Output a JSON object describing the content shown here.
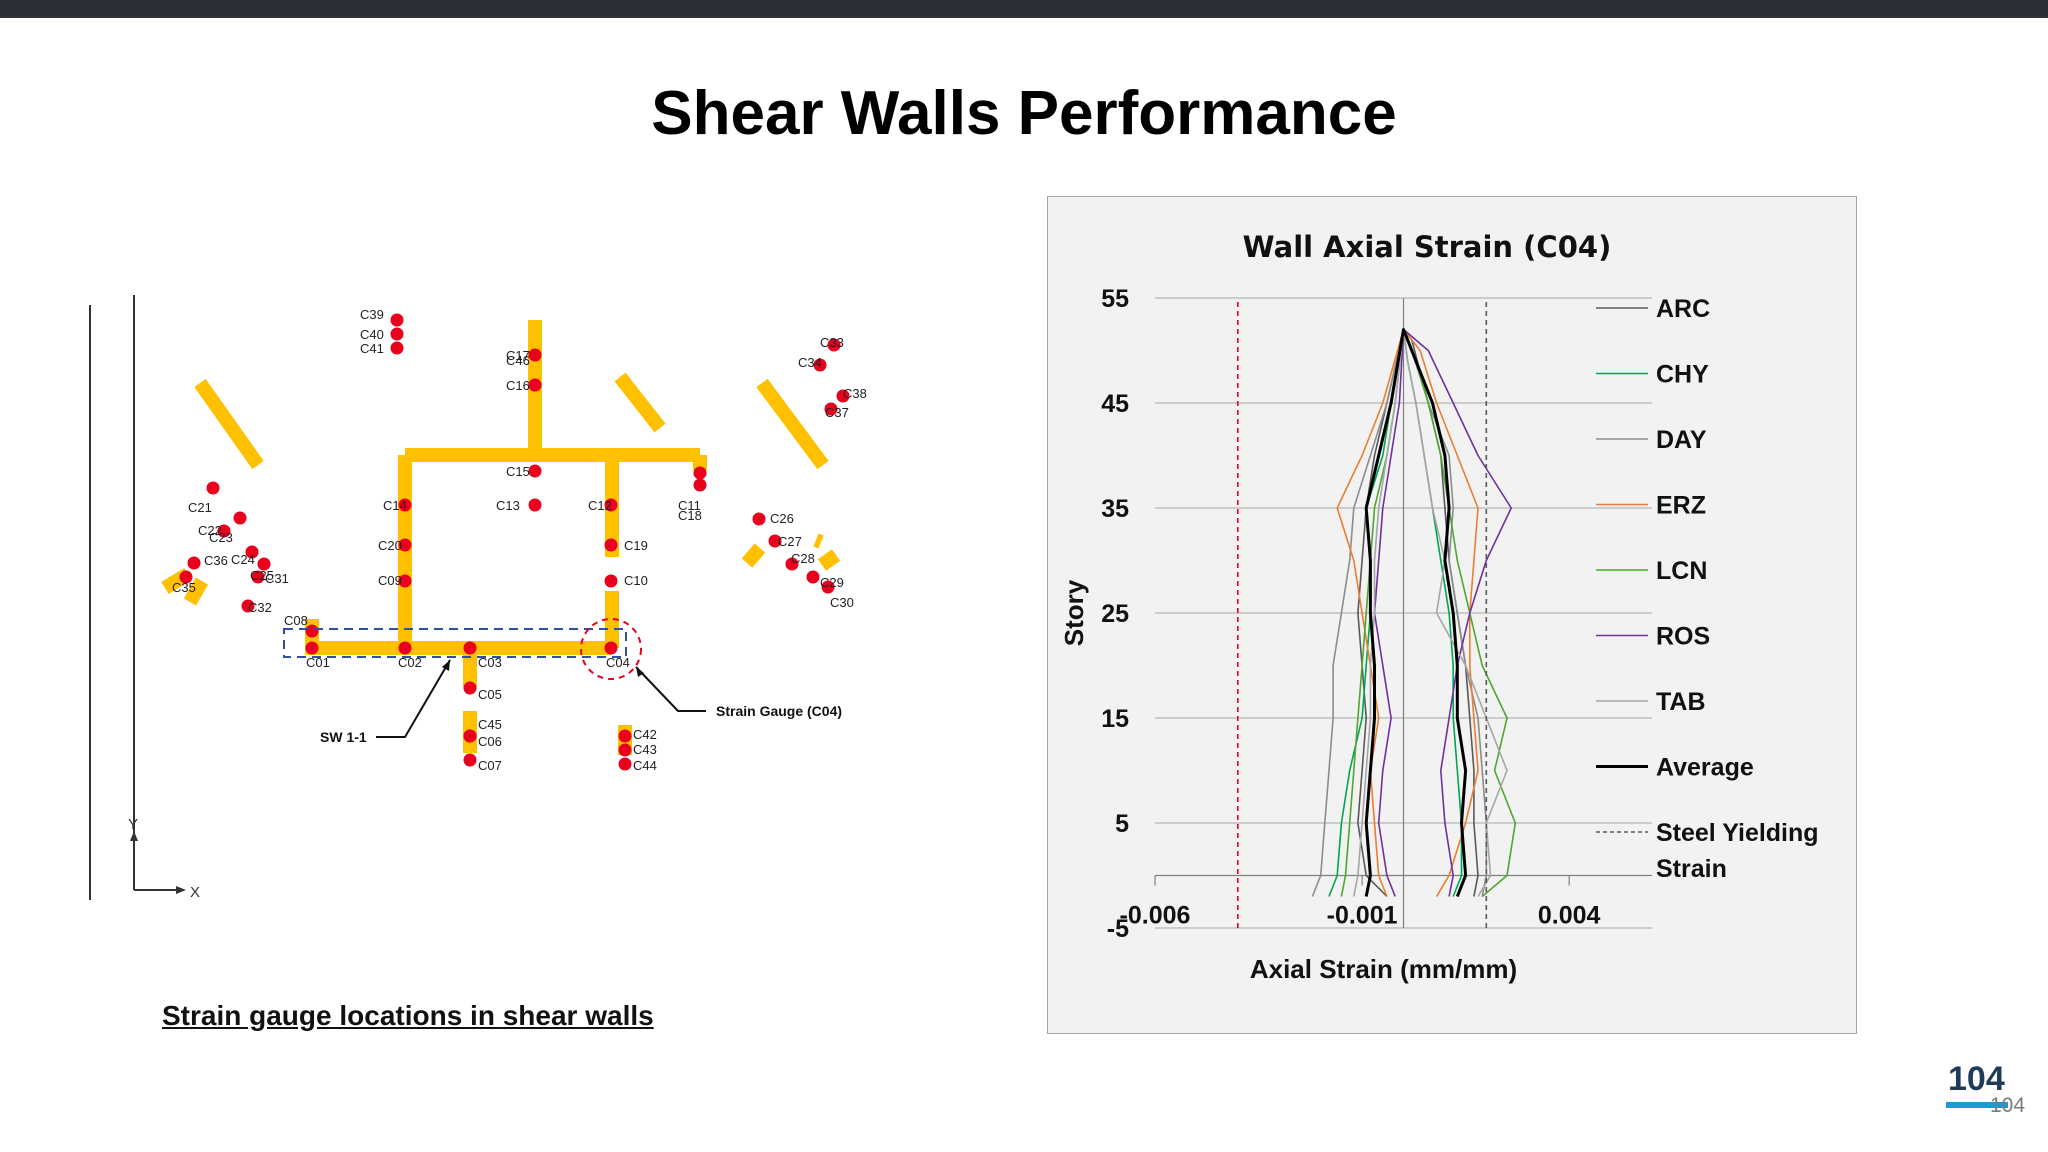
{
  "slide": {
    "title": "Shear Walls Performance",
    "caption": "Strain gauge locations in shear walls",
    "page_number": "104",
    "page_number_secondary": "104"
  },
  "plan": {
    "gauges": [
      "C01",
      "C02",
      "C03",
      "C04",
      "C05",
      "C06",
      "C07",
      "C08",
      "C09",
      "C10",
      "C11",
      "C12",
      "C13",
      "C14",
      "C15",
      "C16",
      "C17",
      "C18",
      "C19",
      "C20",
      "C21",
      "C22",
      "C23",
      "C24",
      "C25",
      "C26",
      "C27",
      "C28",
      "C29",
      "C30",
      "C31",
      "C32",
      "C33",
      "C34",
      "C35",
      "C36",
      "C37",
      "C38",
      "C39",
      "C40",
      "C41",
      "C42",
      "C43",
      "C44",
      "C45",
      "C46"
    ],
    "sw_label": "SW 1-1",
    "callout_label": "Strain Gauge (C04)",
    "axis_y": "Y",
    "axis_x": "X",
    "colors": {
      "wall": "#ffc000",
      "gauge": "#e8001c",
      "dashed_box": "#2e4fa3",
      "highlight": "#e8001c"
    }
  },
  "chart_data": {
    "type": "line",
    "title": "Wall Axial Strain (C04)",
    "xlabel": "Axial Strain (mm/mm)",
    "ylabel": "Story",
    "xlim": [
      -0.006,
      0.006
    ],
    "ylim": [
      -5,
      55
    ],
    "x_ticks": [
      "-0.006",
      "-0.001",
      "0.004"
    ],
    "y_ticks": [
      "-5",
      "5",
      "15",
      "25",
      "35",
      "45",
      "55"
    ],
    "grid": "horizontal",
    "legend_position": "right",
    "series": [
      {
        "name": "ARC",
        "color": "#595959",
        "points": [
          [
            -0.0004,
            -2
          ],
          [
            -0.0009,
            0
          ],
          [
            -0.0011,
            5
          ],
          [
            -0.001,
            10
          ],
          [
            -0.0009,
            15
          ],
          [
            -0.001,
            20
          ],
          [
            -0.0011,
            25
          ],
          [
            -0.001,
            30
          ],
          [
            -0.0009,
            35
          ],
          [
            -0.0007,
            40
          ],
          [
            -0.0004,
            45
          ],
          [
            0,
            52
          ],
          [
            0.0002,
            51
          ],
          [
            0.0006,
            45
          ],
          [
            0.0009,
            40
          ],
          [
            0.001,
            35
          ],
          [
            0.0011,
            30
          ],
          [
            0.0013,
            25
          ],
          [
            0.0015,
            20
          ],
          [
            0.0016,
            15
          ],
          [
            0.0017,
            10
          ],
          [
            0.0017,
            5
          ],
          [
            0.0018,
            0
          ],
          [
            0.0017,
            -2
          ]
        ]
      },
      {
        "name": "CHY",
        "color": "#00a651",
        "points": [
          [
            -0.0018,
            -2
          ],
          [
            -0.0016,
            0
          ],
          [
            -0.0015,
            5
          ],
          [
            -0.0013,
            10
          ],
          [
            -0.001,
            15
          ],
          [
            -0.0009,
            20
          ],
          [
            -0.0008,
            25
          ],
          [
            -0.0008,
            30
          ],
          [
            -0.0009,
            35
          ],
          [
            -0.0005,
            40
          ],
          [
            -0.0003,
            45
          ],
          [
            0,
            52
          ],
          [
            0.0001,
            49
          ],
          [
            0.0003,
            45
          ],
          [
            0.0005,
            40
          ],
          [
            0.0007,
            35
          ],
          [
            0.0009,
            30
          ],
          [
            0.0011,
            25
          ],
          [
            0.0012,
            20
          ],
          [
            0.0012,
            15
          ],
          [
            0.0013,
            10
          ],
          [
            0.0014,
            5
          ],
          [
            0.0014,
            0
          ],
          [
            0.0012,
            -2
          ]
        ]
      },
      {
        "name": "DAY",
        "color": "#8c8c8c",
        "points": [
          [
            -0.0022,
            -2
          ],
          [
            -0.002,
            0
          ],
          [
            -0.0019,
            5
          ],
          [
            -0.0018,
            10
          ],
          [
            -0.0017,
            15
          ],
          [
            -0.0017,
            20
          ],
          [
            -0.0015,
            25
          ],
          [
            -0.0013,
            30
          ],
          [
            -0.0012,
            35
          ],
          [
            -0.0008,
            40
          ],
          [
            -0.0004,
            45
          ],
          [
            0,
            52
          ],
          [
            0.0002,
            50
          ],
          [
            0.0006,
            45
          ],
          [
            0.0011,
            40
          ],
          [
            0.0012,
            35
          ],
          [
            0.0011,
            30
          ],
          [
            0.0013,
            25
          ],
          [
            0.0015,
            20
          ],
          [
            0.0018,
            15
          ],
          [
            0.0019,
            10
          ],
          [
            0.002,
            5
          ],
          [
            0.002,
            0
          ],
          [
            0.0019,
            -2
          ]
        ]
      },
      {
        "name": "ERZ",
        "color": "#ed7d31",
        "points": [
          [
            -0.0004,
            -2
          ],
          [
            -0.0006,
            0
          ],
          [
            -0.0007,
            5
          ],
          [
            -0.0008,
            10
          ],
          [
            -0.0006,
            15
          ],
          [
            -0.0008,
            20
          ],
          [
            -0.001,
            25
          ],
          [
            -0.0012,
            30
          ],
          [
            -0.0016,
            35
          ],
          [
            -0.001,
            40
          ],
          [
            -0.0005,
            45
          ],
          [
            0,
            52
          ],
          [
            0.0004,
            50
          ],
          [
            0.0008,
            45
          ],
          [
            0.0013,
            40
          ],
          [
            0.0018,
            35
          ],
          [
            0.0017,
            30
          ],
          [
            0.0016,
            25
          ],
          [
            0.0016,
            20
          ],
          [
            0.0017,
            15
          ],
          [
            0.0018,
            10
          ],
          [
            0.0015,
            5
          ],
          [
            0.0011,
            0
          ],
          [
            0.0008,
            -2
          ]
        ]
      },
      {
        "name": "LCN",
        "color": "#4ea72e",
        "points": [
          [
            -0.0015,
            -2
          ],
          [
            -0.0014,
            0
          ],
          [
            -0.0013,
            5
          ],
          [
            -0.0012,
            10
          ],
          [
            -0.0011,
            15
          ],
          [
            -0.001,
            20
          ],
          [
            -0.0009,
            25
          ],
          [
            -0.0008,
            30
          ],
          [
            -0.0007,
            35
          ],
          [
            -0.0004,
            40
          ],
          [
            -0.0002,
            45
          ],
          [
            0,
            52
          ],
          [
            0.0003,
            49
          ],
          [
            0.0006,
            45
          ],
          [
            0.0009,
            40
          ],
          [
            0.0011,
            35
          ],
          [
            0.0013,
            30
          ],
          [
            0.0016,
            25
          ],
          [
            0.0019,
            20
          ],
          [
            0.0025,
            15
          ],
          [
            0.0022,
            10
          ],
          [
            0.0027,
            5
          ],
          [
            0.0025,
            0
          ],
          [
            0.0019,
            -2
          ]
        ]
      },
      {
        "name": "ROS",
        "color": "#7030a0",
        "points": [
          [
            -0.0002,
            -2
          ],
          [
            -0.0004,
            0
          ],
          [
            -0.0006,
            5
          ],
          [
            -0.0005,
            10
          ],
          [
            -0.0003,
            15
          ],
          [
            -0.0005,
            20
          ],
          [
            -0.0007,
            25
          ],
          [
            -0.0006,
            30
          ],
          [
            -0.0005,
            35
          ],
          [
            -0.0003,
            40
          ],
          [
            -0.0001,
            45
          ],
          [
            0,
            52
          ],
          [
            0.0006,
            50
          ],
          [
            0.0012,
            45
          ],
          [
            0.0018,
            40
          ],
          [
            0.0026,
            35
          ],
          [
            0.002,
            30
          ],
          [
            0.0016,
            25
          ],
          [
            0.0013,
            20
          ],
          [
            0.0011,
            15
          ],
          [
            0.0009,
            10
          ],
          [
            0.001,
            5
          ],
          [
            0.0012,
            0
          ],
          [
            0.0011,
            -2
          ]
        ]
      },
      {
        "name": "TAB",
        "color": "#a6a6a6",
        "points": [
          [
            -0.0012,
            -2
          ],
          [
            -0.0011,
            0
          ],
          [
            -0.001,
            5
          ],
          [
            -0.0009,
            10
          ],
          [
            -0.0008,
            15
          ],
          [
            -0.0008,
            20
          ],
          [
            -0.0007,
            25
          ],
          [
            -0.0007,
            30
          ],
          [
            -0.0006,
            35
          ],
          [
            -0.0004,
            40
          ],
          [
            -0.0002,
            45
          ],
          [
            0,
            52
          ],
          [
            0.0001,
            49
          ],
          [
            0.0003,
            45
          ],
          [
            0.0005,
            40
          ],
          [
            0.0007,
            35
          ],
          [
            0.001,
            30
          ],
          [
            0.0008,
            25
          ],
          [
            0.0015,
            20
          ],
          [
            0.002,
            15
          ],
          [
            0.0025,
            10
          ],
          [
            0.002,
            5
          ],
          [
            0.0021,
            0
          ],
          [
            0.0018,
            -2
          ]
        ]
      },
      {
        "name": "Average",
        "color": "#000000",
        "points": [
          [
            -0.0009,
            -2
          ],
          [
            -0.0008,
            0
          ],
          [
            -0.0009,
            5
          ],
          [
            -0.0008,
            10
          ],
          [
            -0.0007,
            15
          ],
          [
            -0.0007,
            20
          ],
          [
            -0.0008,
            25
          ],
          [
            -0.0008,
            30
          ],
          [
            -0.0009,
            35
          ],
          [
            -0.0006,
            40
          ],
          [
            -0.0003,
            45
          ],
          [
            0,
            52
          ],
          [
            0.0003,
            49
          ],
          [
            0.0007,
            45
          ],
          [
            0.001,
            40
          ],
          [
            0.0011,
            35
          ],
          [
            0.001,
            30
          ],
          [
            0.0012,
            25
          ],
          [
            0.0013,
            20
          ],
          [
            0.0013,
            15
          ],
          [
            0.0015,
            10
          ],
          [
            0.0014,
            5
          ],
          [
            0.0015,
            0
          ],
          [
            0.0013,
            -2
          ]
        ]
      },
      {
        "name": "Steel Yielding Strain",
        "color": "#595959",
        "dashed": true,
        "points": [
          [
            0.002,
            -5
          ],
          [
            0.002,
            55
          ]
        ]
      },
      {
        "color": "#e8001c",
        "dashed": true,
        "points": [
          [
            -0.004,
            -5
          ],
          [
            -0.004,
            55
          ]
        ]
      }
    ]
  }
}
